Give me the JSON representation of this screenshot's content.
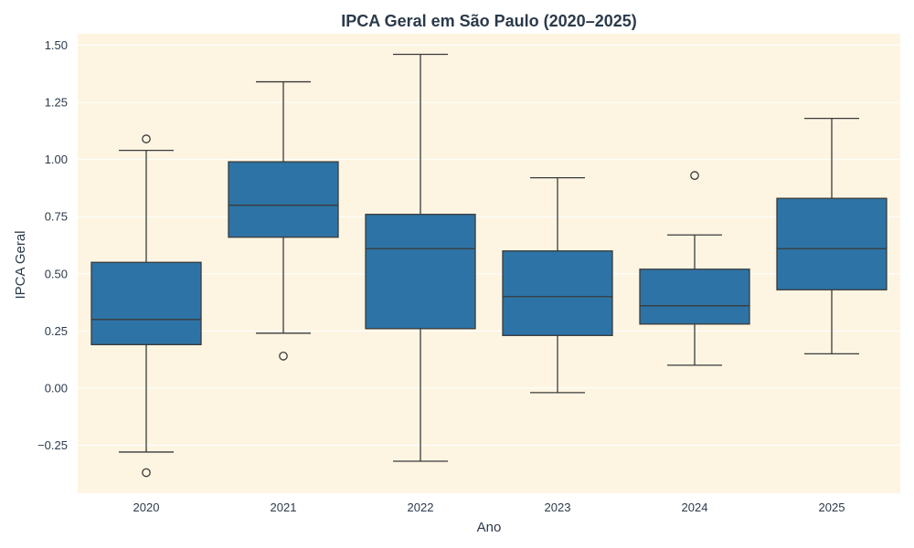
{
  "chart_data": {
    "type": "box",
    "title": "IPCA Geral em São Paulo (2020–2025)",
    "xlabel": "Ano",
    "ylabel": "IPCA Geral",
    "ylim": [
      -0.46,
      1.55
    ],
    "yticks": [
      -0.25,
      0.0,
      0.25,
      0.5,
      0.75,
      1.0,
      1.25,
      1.5
    ],
    "ytick_labels": [
      "−0.25",
      "0.00",
      "0.25",
      "0.50",
      "0.75",
      "1.00",
      "1.25",
      "1.50"
    ],
    "grid": true,
    "categories": [
      "2020",
      "2021",
      "2022",
      "2023",
      "2024",
      "2025"
    ],
    "boxes": [
      {
        "category": "2020",
        "whisker_low": -0.28,
        "q1": 0.19,
        "median": 0.3,
        "q3": 0.55,
        "whisker_high": 1.04,
        "outliers": [
          1.09,
          -0.37
        ]
      },
      {
        "category": "2021",
        "whisker_low": 0.24,
        "q1": 0.66,
        "median": 0.8,
        "q3": 0.99,
        "whisker_high": 1.34,
        "outliers": [
          0.14
        ]
      },
      {
        "category": "2022",
        "whisker_low": -0.32,
        "q1": 0.26,
        "median": 0.61,
        "q3": 0.76,
        "whisker_high": 1.46,
        "outliers": []
      },
      {
        "category": "2023",
        "whisker_low": -0.02,
        "q1": 0.23,
        "median": 0.4,
        "q3": 0.6,
        "whisker_high": 0.92,
        "outliers": []
      },
      {
        "category": "2024",
        "whisker_low": 0.1,
        "q1": 0.28,
        "median": 0.36,
        "q3": 0.52,
        "whisker_high": 0.67,
        "outliers": [
          0.93
        ]
      },
      {
        "category": "2025",
        "whisker_low": 0.15,
        "q1": 0.43,
        "median": 0.61,
        "q3": 0.83,
        "whisker_high": 1.18,
        "outliers": []
      }
    ],
    "colors": {
      "box_fill": "#2e73a5",
      "line": "#3a3a3a",
      "plot_bg": "#fdf5e2",
      "grid": "#ffffff",
      "text": "#2b3a4a"
    }
  }
}
